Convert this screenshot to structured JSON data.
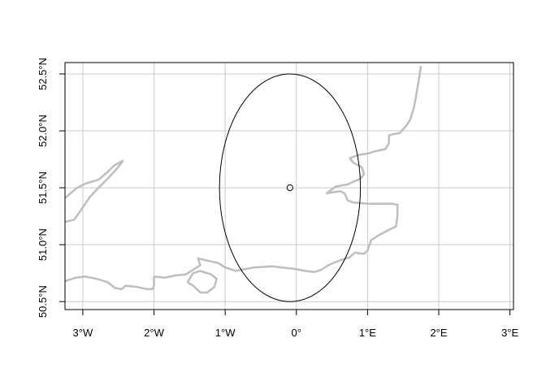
{
  "chart_data": {
    "type": "map",
    "title": "",
    "xlabel": "",
    "ylabel": "",
    "xlim": [
      -3.25,
      3.05
    ],
    "ylim": [
      50.43,
      52.6
    ],
    "grid": true,
    "x_ticks": [
      {
        "value": -3,
        "label": "3°W"
      },
      {
        "value": -2,
        "label": "2°W"
      },
      {
        "value": -1,
        "label": "1°W"
      },
      {
        "value": 0,
        "label": "0°"
      },
      {
        "value": 1,
        "label": "1°E"
      },
      {
        "value": 2,
        "label": "2°E"
      },
      {
        "value": 3,
        "label": "3°E"
      }
    ],
    "y_ticks": [
      {
        "value": 50.5,
        "label": "50.5°N"
      },
      {
        "value": 51.0,
        "label": "51.0°N"
      },
      {
        "value": 51.5,
        "label": "51.5°N"
      },
      {
        "value": 52.0,
        "label": "52.0°N"
      },
      {
        "value": 52.5,
        "label": "52.5°N"
      }
    ],
    "center_point": {
      "lon": -0.09,
      "lat": 51.5
    },
    "ellipse": {
      "center_lon": -0.09,
      "center_lat": 51.5,
      "radius_lon": 0.99,
      "radius_lat": 1.0
    },
    "colors": {
      "coastline": "#bebebe",
      "grid": "#cccccc",
      "frame": "#000000",
      "ellipse": "#000000"
    },
    "coastlines": [
      [
        [
          -3.25,
          51.2
        ],
        [
          -3.12,
          51.22
        ],
        [
          -3.03,
          51.3
        ],
        [
          -2.9,
          51.42
        ],
        [
          -2.78,
          51.5
        ],
        [
          -2.65,
          51.58
        ],
        [
          -2.52,
          51.67
        ],
        [
          -2.43,
          51.74
        ]
      ],
      [
        [
          -3.25,
          51.41
        ],
        [
          -3.08,
          51.5
        ],
        [
          -2.95,
          51.54
        ],
        [
          -2.78,
          51.57
        ],
        [
          -2.65,
          51.64
        ],
        [
          -2.55,
          51.7
        ],
        [
          -2.43,
          51.74
        ]
      ],
      [
        [
          -3.25,
          50.68
        ],
        [
          -3.1,
          50.71
        ],
        [
          -2.97,
          50.72
        ],
        [
          -2.8,
          50.7
        ],
        [
          -2.65,
          50.67
        ],
        [
          -2.55,
          50.62
        ],
        [
          -2.45,
          50.61
        ],
        [
          -2.4,
          50.64
        ],
        [
          -2.25,
          50.63
        ],
        [
          -2.1,
          50.61
        ],
        [
          -2.02,
          50.61
        ],
        [
          -2.0,
          50.64
        ],
        [
          -2.0,
          50.72
        ],
        [
          -1.85,
          50.71
        ],
        [
          -1.7,
          50.73
        ],
        [
          -1.55,
          50.74
        ],
        [
          -1.45,
          50.78
        ],
        [
          -1.35,
          50.82
        ],
        [
          -1.38,
          50.88
        ],
        [
          -1.25,
          50.86
        ],
        [
          -1.1,
          50.84
        ],
        [
          -1.0,
          50.8
        ],
        [
          -0.85,
          50.77
        ],
        [
          -0.6,
          50.8
        ],
        [
          -0.35,
          50.81
        ],
        [
          -0.2,
          50.8
        ],
        [
          -0.05,
          50.79
        ],
        [
          0.12,
          50.77
        ],
        [
          0.25,
          50.76
        ],
        [
          0.35,
          50.78
        ],
        [
          0.45,
          50.82
        ],
        [
          0.6,
          50.86
        ],
        [
          0.75,
          50.89
        ],
        [
          0.82,
          50.93
        ],
        [
          0.95,
          50.92
        ],
        [
          1.0,
          50.95
        ],
        [
          1.05,
          51.04
        ],
        [
          1.15,
          51.08
        ],
        [
          1.3,
          51.13
        ],
        [
          1.4,
          51.16
        ],
        [
          1.42,
          51.25
        ],
        [
          1.42,
          51.35
        ],
        [
          1.35,
          51.36
        ],
        [
          1.2,
          51.36
        ],
        [
          1.0,
          51.36
        ],
        [
          0.8,
          51.37
        ],
        [
          0.72,
          51.39
        ],
        [
          0.68,
          51.45
        ],
        [
          0.62,
          51.47
        ],
        [
          0.5,
          51.46
        ],
        [
          0.42,
          51.45
        ]
      ],
      [
        [
          0.42,
          51.45
        ],
        [
          0.55,
          51.51
        ],
        [
          0.72,
          51.53
        ],
        [
          0.9,
          51.58
        ],
        [
          0.95,
          51.62
        ],
        [
          0.92,
          51.68
        ],
        [
          0.8,
          51.72
        ],
        [
          0.75,
          51.76
        ],
        [
          0.88,
          51.79
        ],
        [
          1.0,
          51.8
        ],
        [
          1.1,
          51.82
        ],
        [
          1.25,
          51.84
        ],
        [
          1.3,
          51.89
        ],
        [
          1.3,
          51.96
        ],
        [
          1.35,
          51.97
        ],
        [
          1.45,
          51.98
        ],
        [
          1.55,
          52.05
        ],
        [
          1.6,
          52.1
        ],
        [
          1.65,
          52.2
        ],
        [
          1.68,
          52.3
        ],
        [
          1.72,
          52.45
        ],
        [
          1.75,
          52.57
        ]
      ],
      [
        [
          -1.53,
          50.67
        ],
        [
          -1.45,
          50.75
        ],
        [
          -1.35,
          50.77
        ],
        [
          -1.2,
          50.74
        ],
        [
          -1.12,
          50.7
        ],
        [
          -1.15,
          50.63
        ],
        [
          -1.25,
          50.58
        ],
        [
          -1.35,
          50.58
        ],
        [
          -1.45,
          50.64
        ],
        [
          -1.53,
          50.67
        ]
      ]
    ]
  }
}
